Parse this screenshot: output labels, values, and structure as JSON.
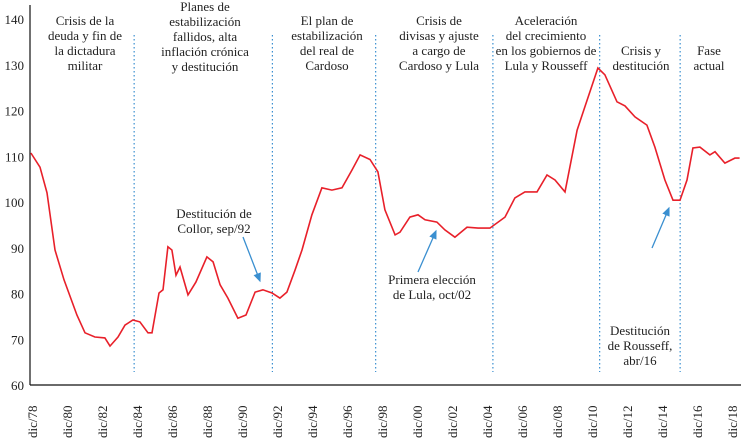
{
  "chart_data": {
    "type": "line",
    "title": "",
    "xlabel": "",
    "ylabel": "",
    "ylim": [
      60,
      140
    ],
    "y_ticks": [
      "60",
      "70",
      "80",
      "90",
      "100",
      "110",
      "120",
      "130",
      "140"
    ],
    "x_ticks": [
      "dic/78",
      "dic/80",
      "dic/82",
      "dic/84",
      "dic/86",
      "dic/88",
      "dic/90",
      "dic/92",
      "dic/94",
      "dic/96",
      "dic/98",
      "dic/00",
      "dic/02",
      "dic/04",
      "dic/06",
      "dic/08",
      "dic/10",
      "dic/12",
      "dic/14",
      "dic/16",
      "dic/18"
    ],
    "grid": false,
    "line_color": "#e8202a",
    "annotation_color": "#3a8fd0",
    "series": [
      {
        "x": [
          1978.8,
          1979.32,
          1979.72,
          1980.18,
          1980.69,
          1981.43,
          1981.89,
          1982.46,
          1983.03,
          1983.32,
          1983.78,
          1984.18,
          1984.63,
          1985.03,
          1985.49,
          1985.72,
          1986.12,
          1986.35,
          1986.63,
          1986.86,
          1987.09,
          1987.32,
          1987.78,
          1988.23,
          1988.86,
          1989.21,
          1989.61,
          1990.06,
          1990.63,
          1991.09,
          1991.61,
          1992.06,
          1992.58,
          1993.03,
          1993.43,
          1993.89,
          1994.29,
          1994.86,
          1995.43,
          1996.0,
          1996.58,
          1997.15,
          1997.61,
          1998.18,
          1998.63,
          1999.03,
          1999.61,
          1999.89,
          2000.46,
          2000.92,
          2001.32,
          2002.0,
          2002.46,
          2003.03,
          2003.72,
          2004.35,
          2005.03,
          2005.89,
          2006.46,
          2007.03,
          2007.72,
          2008.29,
          2008.75,
          2009.32,
          2010.01,
          2010.46,
          2011.2,
          2011.6,
          2012.29,
          2012.75,
          2013.32,
          2014.0,
          2014.46,
          2015.03,
          2015.49,
          2015.89,
          2016.29,
          2016.63,
          2017.03,
          2017.6,
          2017.89,
          2018.46,
          2019.03,
          2019.3
        ],
        "values": [
          110.7,
          107.6,
          102,
          89.5,
          83,
          75.3,
          71.4,
          70.5,
          70.3,
          68.5,
          70.5,
          73.1,
          74.2,
          73.8,
          71.4,
          71.4,
          80.1,
          80.8,
          90.2,
          89.5,
          84,
          85.8,
          79.7,
          82.5,
          88,
          86.9,
          81.9,
          79,
          74.6,
          75.3,
          80.3,
          80.8,
          80.1,
          79,
          80.3,
          85.1,
          89.5,
          97.2,
          103.1,
          102.6,
          103.1,
          107,
          110.3,
          109.3,
          106.6,
          98.3,
          92.8,
          93.4,
          96.7,
          97.2,
          96.1,
          95.6,
          93.9,
          92.3,
          94.5,
          94.3,
          94.3,
          96.7,
          100.9,
          102.2,
          102.2,
          105.9,
          104.8,
          102.2,
          115.7,
          120.8,
          129.3,
          127.8,
          121.9,
          121,
          118.6,
          116.8,
          112,
          104.8,
          100.4,
          100.4,
          104.8,
          111.8,
          112,
          110.3,
          111,
          108.5,
          109.6,
          109.6
        ]
      }
    ],
    "periods": [
      {
        "label": [
          "Crisis de la",
          "deuda y fin de",
          "la dictadura",
          "militar"
        ]
      },
      {
        "label": [
          "Planes de",
          "estabilización",
          "fallidos, alta",
          "inflación crónica",
          "y destitución"
        ]
      },
      {
        "label": [
          "El plan de",
          "estabilización",
          "del real de",
          "Cardoso"
        ]
      },
      {
        "label": [
          "Crisis de",
          "divisas y ajuste",
          "a cargo de",
          "Cardoso y Lula"
        ]
      },
      {
        "label": [
          "Aceleración",
          "del crecimiento",
          "en los gobiernos de",
          "Lula y Rousseff"
        ]
      },
      {
        "label": [
          "Crisis y",
          "destitución"
        ]
      },
      {
        "label": [
          "Fase",
          "actual"
        ]
      }
    ],
    "period_boundaries": [
      1984.7,
      1992.6,
      1998.5,
      2005.2,
      2011.3,
      2015.9
    ],
    "annotations": [
      {
        "text": [
          "Destitución de",
          "Collor, sep/92"
        ]
      },
      {
        "text": [
          "Primera elección",
          "de Lula, oct/02"
        ]
      },
      {
        "text": [
          "Destitución",
          "de Rousseff,",
          "abr/16"
        ]
      }
    ]
  }
}
